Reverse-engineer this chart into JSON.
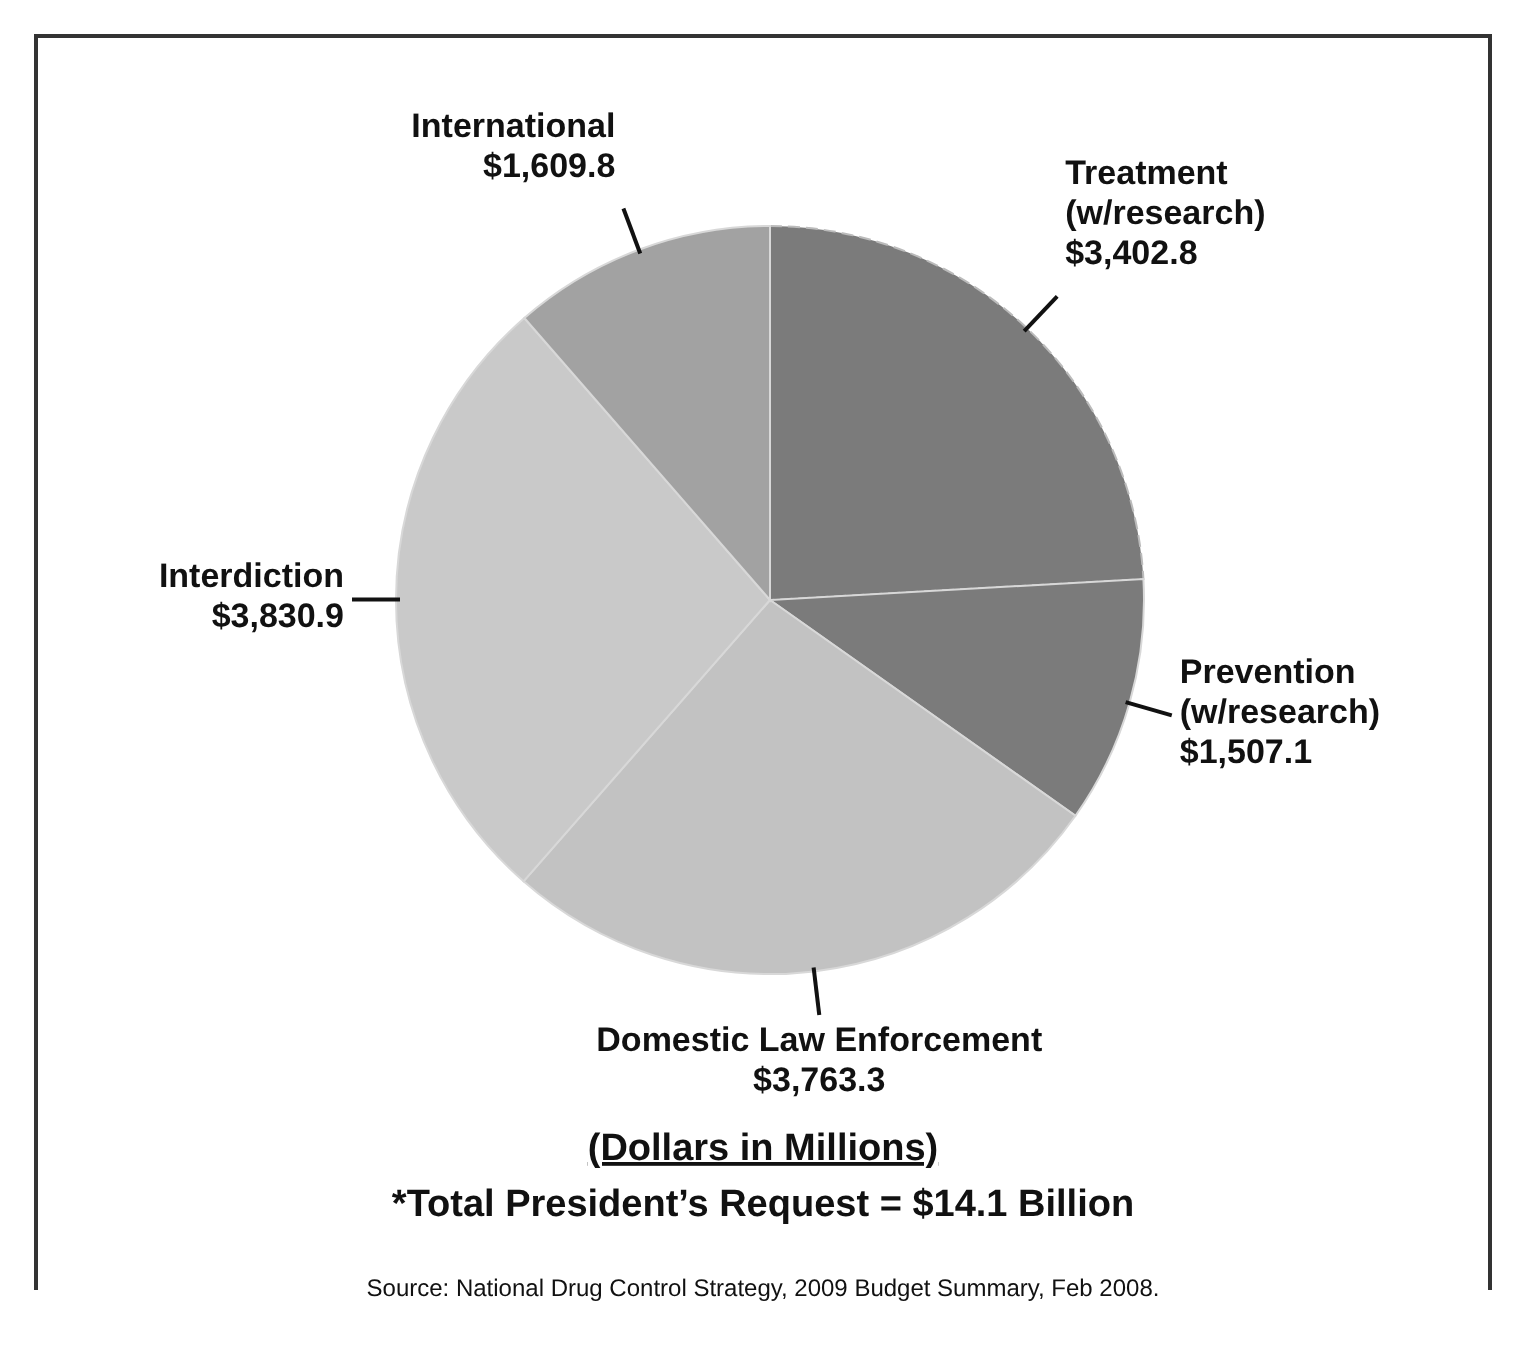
{
  "chart_data": {
    "type": "pie",
    "categories": [
      "Treatment\n(w/research)",
      "Prevention\n(w/research)",
      "Domestic Law Enforcement",
      "Interdiction",
      "International"
    ],
    "values": [
      3402.8,
      1507.1,
      3763.3,
      3830.9,
      1609.8
    ],
    "value_labels": [
      "$3,402.8",
      "$1,507.1",
      "$3,763.3",
      "$3,830.9",
      "$1,609.8"
    ],
    "colors": [
      "#7b7b7b",
      "#7b7b7b",
      "#c2c2c2",
      "#c9c9c9",
      "#a2a2a2"
    ],
    "annotations": [
      "(Dollars in Millions)",
      "*Total President’s Request = $14.1 Billion",
      "Source: National Drug Control Strategy, 2009 Budget Summary, Feb 2008."
    ]
  }
}
